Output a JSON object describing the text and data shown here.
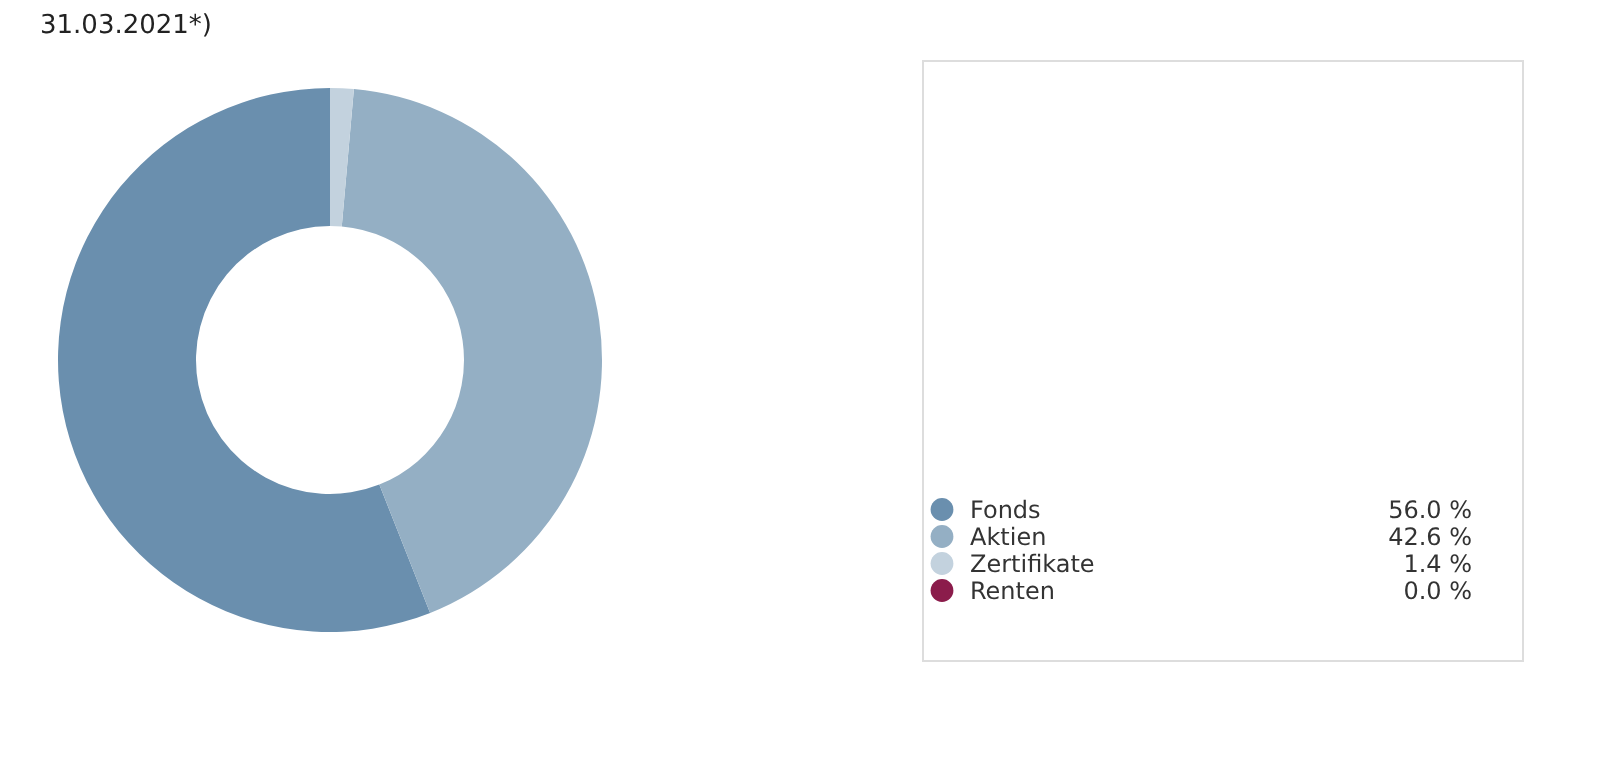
{
  "chart_data": {
    "type": "donut",
    "title": "31.03.2021*)",
    "categories": [
      "Fonds",
      "Aktien",
      "Zertifikate",
      "Renten"
    ],
    "values": [
      56.0,
      42.6,
      1.4,
      0.0
    ],
    "colors": [
      "#6a8fae",
      "#94afc4",
      "#c3d2de",
      "#8b1c4b"
    ],
    "value_labels": [
      "56.0 %",
      "42.6 %",
      "1.4 %",
      "0.0 %"
    ],
    "legend": "bottom right"
  }
}
